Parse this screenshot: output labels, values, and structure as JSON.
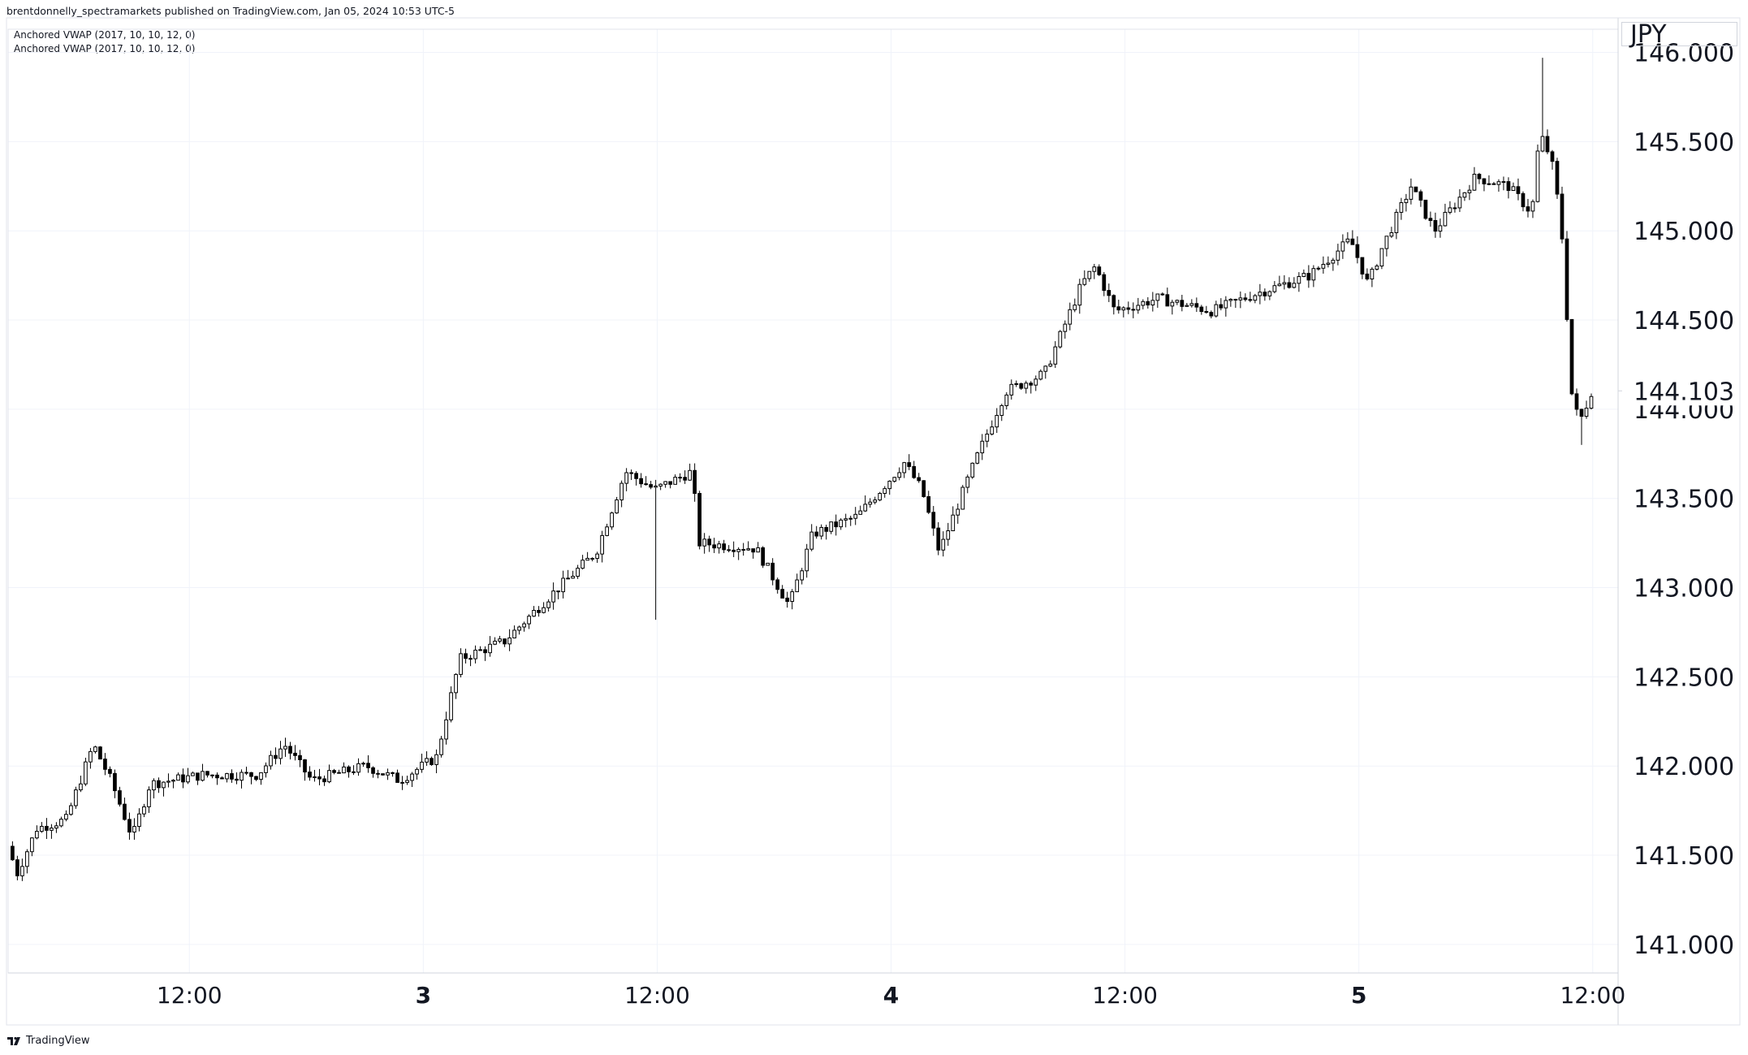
{
  "header": {
    "published_line": "brentdonnelly_spectramarkets published on TradingView.com, Jan 05, 2024 10:53 UTC-5"
  },
  "indicators": [
    "Anchored VWAP (2017, 10, 10, 12, 0)",
    "Anchored VWAP (2017, 10, 10, 12, 0)"
  ],
  "footer": {
    "brand": "TradingView",
    "logo_icon": "tradingview-logo-icon"
  },
  "colors": {
    "grid": "#f0f3fa",
    "candle": "#000000",
    "background": "#ffffff",
    "border": "#d1d4dc",
    "text": "#131722"
  },
  "chart_data": {
    "type": "candlestick",
    "currency": "JPY",
    "last_price": "144.103",
    "y_ticks": [
      "141.000",
      "141.500",
      "142.000",
      "142.500",
      "143.000",
      "143.500",
      "144.000",
      "144.500",
      "145.000",
      "145.500",
      "146.000"
    ],
    "ylim": [
      140.84,
      146.13
    ],
    "x_ticks": [
      "12:00",
      "3",
      "12:00",
      "4",
      "12:00",
      "5",
      "12:00"
    ],
    "x_tick_bold": [
      false,
      true,
      false,
      true,
      false,
      true,
      false
    ],
    "x_time_hours": [
      12,
      24,
      36,
      48,
      60,
      72,
      84
    ],
    "xlim_hours": [
      2.7,
      85.3
    ],
    "candle_interval_hours": 0.25,
    "grid": true,
    "price_path": [
      {
        "t": 2.8,
        "p": 141.55
      },
      {
        "t": 3.3,
        "p": 141.4
      },
      {
        "t": 4.3,
        "p": 141.65
      },
      {
        "t": 5.8,
        "p": 141.7
      },
      {
        "t": 7.2,
        "p": 142.12
      },
      {
        "t": 8.1,
        "p": 141.92
      },
      {
        "t": 9.2,
        "p": 141.6
      },
      {
        "t": 10.1,
        "p": 141.9
      },
      {
        "t": 12.8,
        "p": 141.95
      },
      {
        "t": 15.6,
        "p": 141.95
      },
      {
        "t": 17.0,
        "p": 142.12
      },
      {
        "t": 18.4,
        "p": 141.92
      },
      {
        "t": 21.2,
        "p": 142.0
      },
      {
        "t": 22.9,
        "p": 141.92
      },
      {
        "t": 24.8,
        "p": 142.05
      },
      {
        "t": 26.0,
        "p": 142.6
      },
      {
        "t": 28.3,
        "p": 142.7
      },
      {
        "t": 30.6,
        "p": 142.95
      },
      {
        "t": 33.0,
        "p": 143.2
      },
      {
        "t": 34.5,
        "p": 143.65
      },
      {
        "t": 36.0,
        "p": 143.55
      },
      {
        "t": 37.9,
        "p": 143.65
      },
      {
        "t": 38.3,
        "p": 143.25
      },
      {
        "t": 41.2,
        "p": 143.22
      },
      {
        "t": 42.9,
        "p": 142.9
      },
      {
        "t": 44.1,
        "p": 143.3
      },
      {
        "t": 46.4,
        "p": 143.4
      },
      {
        "t": 48.8,
        "p": 143.7
      },
      {
        "t": 49.7,
        "p": 143.55
      },
      {
        "t": 50.6,
        "p": 143.2
      },
      {
        "t": 52.4,
        "p": 143.7
      },
      {
        "t": 54.0,
        "p": 144.1
      },
      {
        "t": 56.0,
        "p": 144.2
      },
      {
        "t": 57.9,
        "p": 144.7
      },
      {
        "t": 58.6,
        "p": 144.8
      },
      {
        "t": 59.6,
        "p": 144.55
      },
      {
        "t": 61.8,
        "p": 144.62
      },
      {
        "t": 64.6,
        "p": 144.55
      },
      {
        "t": 66.9,
        "p": 144.65
      },
      {
        "t": 69.6,
        "p": 144.75
      },
      {
        "t": 71.7,
        "p": 144.95
      },
      {
        "t": 72.6,
        "p": 144.7
      },
      {
        "t": 73.3,
        "p": 144.9
      },
      {
        "t": 74.8,
        "p": 145.25
      },
      {
        "t": 76.0,
        "p": 145.0
      },
      {
        "t": 78.1,
        "p": 145.3
      },
      {
        "t": 79.8,
        "p": 145.25
      },
      {
        "t": 81.0,
        "p": 145.1
      },
      {
        "t": 81.4,
        "p": 145.55
      },
      {
        "t": 82.0,
        "p": 145.4
      },
      {
        "t": 82.5,
        "p": 145.05
      },
      {
        "t": 83.1,
        "p": 144.0
      },
      {
        "t": 83.6,
        "p": 143.95
      },
      {
        "t": 84.0,
        "p": 144.1
      }
    ],
    "notable_wicks": [
      {
        "t": 81.4,
        "high": 145.97
      },
      {
        "t": 83.2,
        "low": 143.8
      },
      {
        "t": 35.8,
        "low": 142.82
      }
    ]
  }
}
